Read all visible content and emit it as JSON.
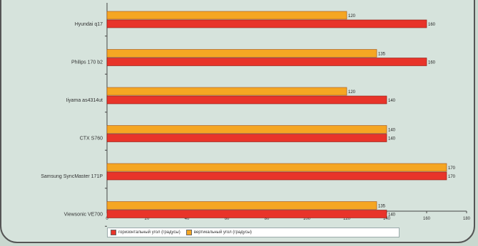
{
  "chart_data": {
    "type": "bar",
    "orientation": "horizontal",
    "categories": [
      "Hyundai q17",
      "Philips 170 b2",
      "Iiyama as4314ut",
      "CTX S760",
      "Samsung SyncMaster 171P",
      "Viewsonic VE700"
    ],
    "series": [
      {
        "name": "горизонтальный угол (градусы)",
        "color": "#e8342a",
        "values": [
          160,
          160,
          140,
          140,
          170,
          140
        ]
      },
      {
        "name": "вертикальный угол (градусы)",
        "color": "#f5a623",
        "values": [
          120,
          135,
          120,
          140,
          170,
          135
        ]
      }
    ],
    "value_labels": {
      "horizontal": [
        "160",
        "160",
        "140",
        "140",
        "170",
        "140"
      ],
      "vertical": [
        "120",
        "135",
        "120",
        "140",
        "170",
        "135"
      ]
    },
    "xlim": [
      0,
      180
    ],
    "xticks": [
      "0",
      "20",
      "40",
      "60",
      "80",
      "100",
      "120",
      "140",
      "160",
      "180"
    ],
    "grid": false,
    "legend_position": "bottom"
  }
}
